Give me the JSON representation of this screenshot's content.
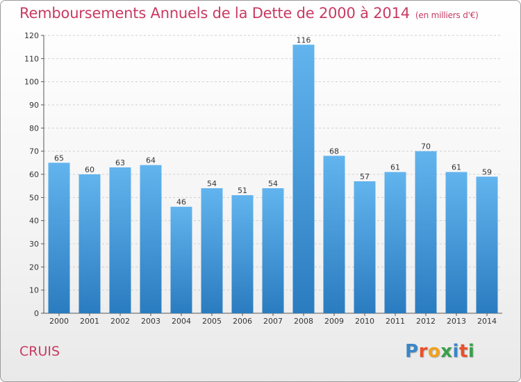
{
  "header": {
    "title": "Remboursements Annuels de la Dette de 2000 à 2014",
    "unit": "(en milliers d'€)"
  },
  "footer": {
    "commune": "CRUIS",
    "logo_text": "Proxiti",
    "logo_colors": [
      "#3a86c8",
      "#e8522c",
      "#f0a020",
      "#3aa04a",
      "#3a86c8",
      "#e8522c",
      "#3aa04a"
    ]
  },
  "colors": {
    "accent": "#c83a62",
    "bar_top": "#62b4ee",
    "bar_bottom": "#2a7cc0",
    "grid": "#d0d0d0",
    "axis": "#555555",
    "label": "#333333"
  },
  "chart_data": {
    "type": "bar",
    "title": "Remboursements Annuels de la Dette de 2000 à 2014",
    "xlabel": "",
    "ylabel": "",
    "categories": [
      "2000",
      "2001",
      "2002",
      "2003",
      "2004",
      "2005",
      "2006",
      "2007",
      "2008",
      "2009",
      "2010",
      "2011",
      "2012",
      "2013",
      "2014"
    ],
    "values": [
      65,
      60,
      63,
      64,
      46,
      54,
      51,
      54,
      116,
      68,
      57,
      61,
      70,
      61,
      59
    ],
    "ylim": [
      0,
      120
    ],
    "yticks": [
      0,
      10,
      20,
      30,
      40,
      50,
      60,
      70,
      80,
      90,
      100,
      110,
      120
    ],
    "grid": true,
    "legend": "none"
  }
}
